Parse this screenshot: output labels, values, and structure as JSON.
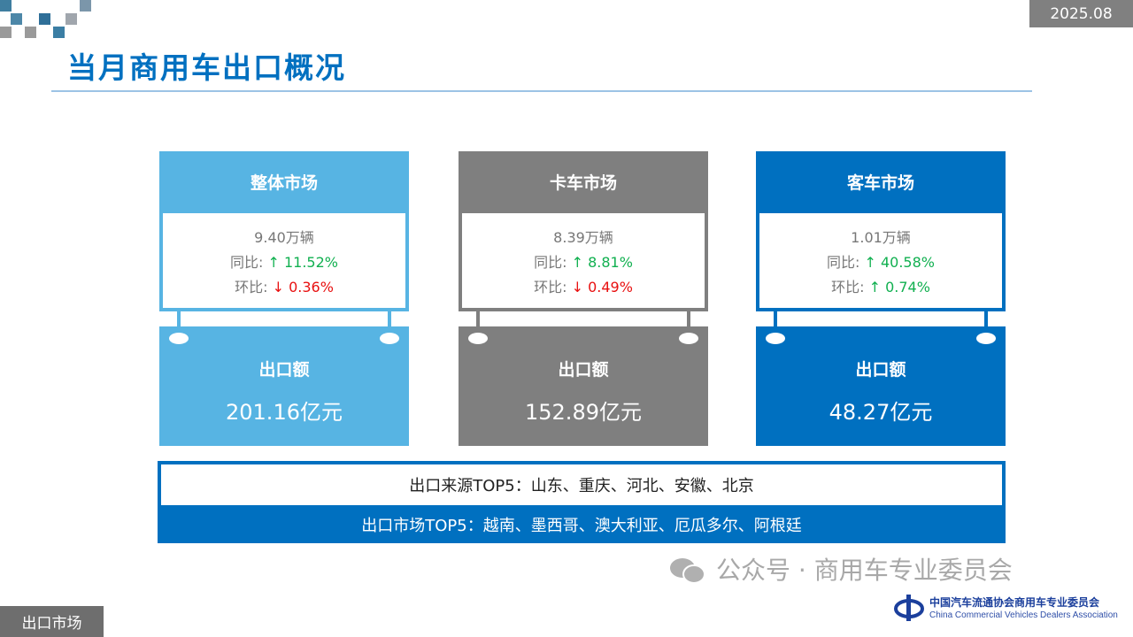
{
  "date": "2025.08",
  "title": "当月商用车出口概况",
  "cards": [
    {
      "header": "整体市场",
      "volume": "9.40万辆",
      "yoy_label": "同比:",
      "yoy_arrow": "↑",
      "yoy": "11.52%",
      "yoy_dir": "up",
      "mom_label": "环比:",
      "mom_arrow": "↓",
      "mom": "0.36%",
      "mom_dir": "down",
      "amount_label": "出口额",
      "amount": "201.16亿元",
      "color": "#57b4e3"
    },
    {
      "header": "卡车市场",
      "volume": "8.39万辆",
      "yoy_label": "同比:",
      "yoy_arrow": "↑",
      "yoy": "8.81%",
      "yoy_dir": "up",
      "mom_label": "环比:",
      "mom_arrow": "↓",
      "mom": "0.49%",
      "mom_dir": "down",
      "amount_label": "出口额",
      "amount": "152.89亿元",
      "color": "#7f7f7f"
    },
    {
      "header": "客车市场",
      "volume": "1.01万辆",
      "yoy_label": "同比:",
      "yoy_arrow": "↑",
      "yoy": "40.58%",
      "yoy_dir": "up",
      "mom_label": "环比:",
      "mom_arrow": "↑",
      "mom": "0.74%",
      "mom_dir": "up",
      "amount_label": "出口额",
      "amount": "48.27亿元",
      "color": "#0070c0"
    }
  ],
  "source_top5": "出口来源TOP5：山东、重庆、河北、安徽、北京",
  "market_top5": "出口市场TOP5：越南、墨西哥、澳大利亚、厄瓜多尔、阿根廷",
  "watermark": "公众号 · 商用车专业委员会",
  "logo": {
    "cn": "中国汽车流通协会商用车专业委员会",
    "en": "China Commercial Vehicles Dealers Association"
  },
  "section_label": "出口市场",
  "colors": {
    "accent": "#0070c0",
    "light_blue": "#57b4e3",
    "gray": "#7f7f7f",
    "up": "#11b050",
    "down": "#e81010"
  }
}
